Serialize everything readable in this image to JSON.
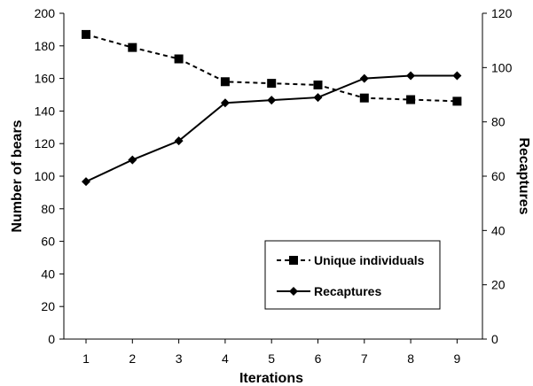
{
  "chart_data": {
    "type": "line",
    "x": [
      1,
      2,
      3,
      4,
      5,
      6,
      7,
      8,
      9
    ],
    "xlabel": "Iterations",
    "ylabel": "Number of bears",
    "y2label": "Recaptures",
    "ylim": [
      0,
      200
    ],
    "y2lim": [
      0,
      120
    ],
    "yticks": [
      0,
      20,
      40,
      60,
      80,
      100,
      120,
      140,
      160,
      180,
      200
    ],
    "y2ticks": [
      0,
      20,
      40,
      60,
      80,
      100,
      120
    ],
    "grid": false,
    "legend_position": "lower-right",
    "series": [
      {
        "name": "Unique individuals",
        "axis": "left",
        "style": "dashed",
        "marker": "square",
        "color": "#000000",
        "values": [
          187,
          179,
          172,
          158,
          157,
          156,
          148,
          147,
          146
        ]
      },
      {
        "name": "Recaptures",
        "axis": "right",
        "style": "solid",
        "marker": "diamond",
        "color": "#000000",
        "values": [
          58,
          66,
          73,
          87,
          88,
          89,
          96,
          97,
          97
        ]
      }
    ]
  }
}
